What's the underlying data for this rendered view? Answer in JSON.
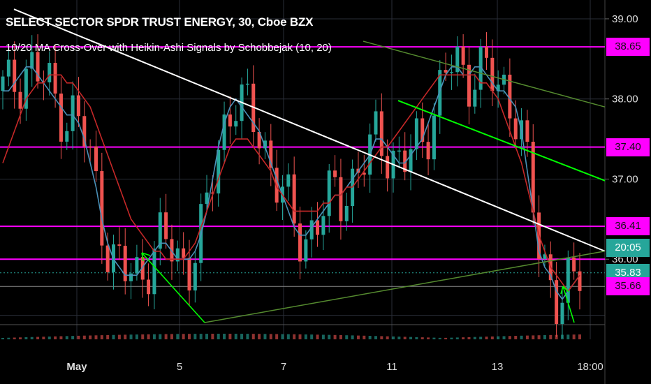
{
  "header": {
    "title": "SELECT SECTOR SPDR TRUST ENERGY, 30, Cboe BZX",
    "indicator": "10/20 MA Cross-Over with Heikin-Ashi Signals by Schobbejak (10, 20)"
  },
  "colors": {
    "background": "#000000",
    "grid": "#2a2e39",
    "bull": "#26a69a",
    "bear": "#ef5350",
    "ma10": "#4a90b8",
    "ma20": "#c62828",
    "level": "#ff00ff",
    "channel": "#4caf50",
    "trend": "#ffffff",
    "arrow": "#00ff00"
  },
  "chart_data": {
    "type": "candlestick",
    "title": "SELECT SECTOR SPDR TRUST ENERGY, 30, Cboe BZX",
    "ylim": [
      35.0,
      39.2
    ],
    "y_ticks": [
      "39.00",
      "38.00",
      "37.00",
      "36.00"
    ],
    "x_ticks": [
      "May",
      "5",
      "7",
      "11",
      "13",
      "18:00"
    ],
    "horizontal_levels": [
      38.65,
      37.4,
      36.41,
      35.66
    ],
    "price_tags": [
      {
        "value": 38.65,
        "label": "38.65",
        "style": "magenta"
      },
      {
        "value": 37.4,
        "label": "37.40",
        "style": "magenta"
      },
      {
        "value": 36.41,
        "label": "36.41",
        "style": "magenta"
      },
      {
        "value": 35.83,
        "label": "35.83",
        "style": "teal"
      },
      {
        "label": "20:05",
        "style": "teal"
      },
      {
        "value": 35.66,
        "label": "35.66",
        "style": "magenta"
      }
    ],
    "last_price": 35.83,
    "series": [
      {
        "name": "MA 10",
        "values": [
          38.1,
          38.1,
          38.2,
          38.3,
          38.4,
          38.4,
          38.3,
          38.2,
          38.1,
          38.0,
          37.9,
          37.8,
          37.8,
          37.7,
          37.5,
          37.2,
          36.9,
          36.5,
          36.2,
          36.0,
          35.9,
          35.8,
          35.8,
          35.8,
          35.9,
          36.0,
          36.1,
          36.2,
          36.2,
          36.1,
          36.0,
          36.0,
          36.0,
          36.1,
          36.3,
          36.6,
          37.0,
          37.4,
          37.7,
          37.9,
          38.0,
          37.9,
          37.8,
          37.7,
          37.6,
          37.4,
          37.2,
          37.0,
          36.8,
          36.6,
          36.4,
          36.3,
          36.3,
          36.4,
          36.5,
          36.6,
          36.7,
          36.8,
          36.8,
          36.9,
          37.0,
          37.1,
          37.2,
          37.3,
          37.5,
          37.5,
          37.4,
          37.3,
          37.2,
          37.2,
          37.3,
          37.4,
          37.5,
          37.7,
          37.9,
          38.1,
          38.3,
          38.4,
          38.4,
          38.3,
          38.3,
          38.4,
          38.4,
          38.3,
          38.2,
          38.1,
          38.1,
          38.0,
          37.9,
          37.6,
          37.1,
          36.6,
          36.1,
          35.9,
          35.8,
          35.6,
          35.5,
          35.6,
          35.7,
          35.8
        ]
      },
      {
        "name": "MA 20",
        "values": [
          37.2,
          37.4,
          37.6,
          37.8,
          38.0,
          38.1,
          38.2,
          38.2,
          38.3,
          38.3,
          38.3,
          38.2,
          38.2,
          38.1,
          38.0,
          37.9,
          37.7,
          37.5,
          37.3,
          37.1,
          36.9,
          36.7,
          36.5,
          36.4,
          36.3,
          36.2,
          36.1,
          36.1,
          36.0,
          36.0,
          36.0,
          36.0,
          36.1,
          36.2,
          36.4,
          36.6,
          36.8,
          37.0,
          37.2,
          37.4,
          37.5,
          37.5,
          37.5,
          37.4,
          37.3,
          37.2,
          37.1,
          36.9,
          36.8,
          36.7,
          36.6,
          36.6,
          36.6,
          36.6,
          36.6,
          36.7,
          36.7,
          36.8,
          36.8,
          36.9,
          36.9,
          37.0,
          37.1,
          37.2,
          37.3,
          37.4,
          37.4,
          37.5,
          37.6,
          37.7,
          37.8,
          37.9,
          38.0,
          38.1,
          38.2,
          38.3,
          38.3,
          38.3,
          38.3,
          38.3,
          38.3,
          38.3,
          38.2,
          38.2,
          38.1,
          38.0,
          37.8,
          37.6,
          37.4,
          37.2,
          36.9,
          36.6,
          36.3,
          36.1,
          35.9,
          35.8,
          35.7,
          35.6,
          35.7,
          35.8
        ]
      }
    ],
    "annotations": {
      "support_points": [
        35.62,
        35.35
      ],
      "descending_channel_upper": [
        38.72,
        37.9
      ],
      "descending_channel_lower": [
        37.98,
        36.98
      ],
      "resistance_trendline": [
        39.12,
        36.1
      ]
    }
  }
}
